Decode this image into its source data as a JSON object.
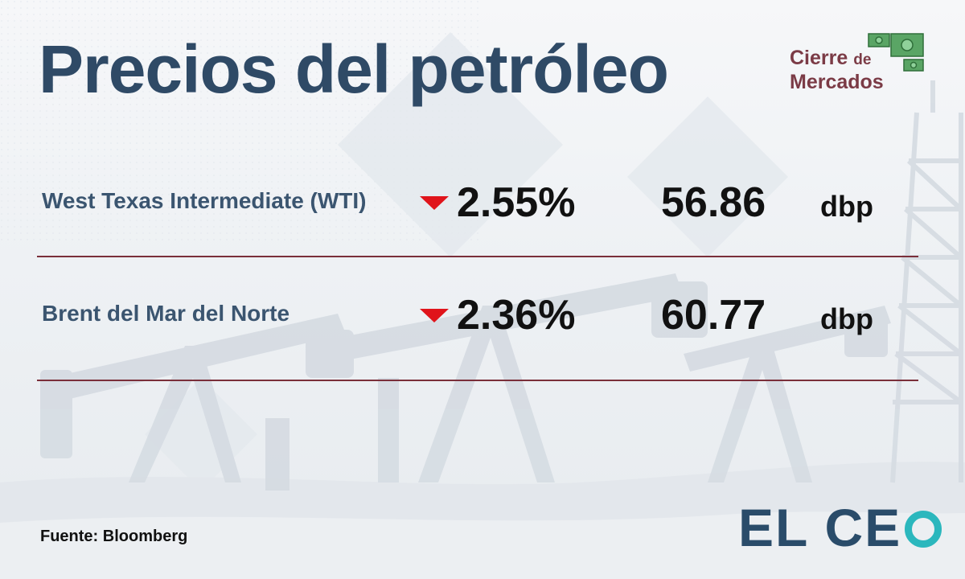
{
  "title": "Precios del petróleo",
  "badge": {
    "line1": "Cierre",
    "line1_small": "de",
    "line2": "Mercados",
    "icon": "money-bills-icon"
  },
  "rows": [
    {
      "name": "West Texas Intermediate (WTI)",
      "direction": "down",
      "change": "2.55%",
      "price": "56.86",
      "unit": "dbp"
    },
    {
      "name": "Brent del Mar del Norte",
      "direction": "down",
      "change": "2.36%",
      "price": "60.77",
      "unit": "dbp"
    }
  ],
  "source": "Fuente: Bloomberg",
  "brand": {
    "text": "EL CE"
  },
  "colors": {
    "title": "#2f4a66",
    "badge_text": "#7b3b46",
    "down_arrow": "#e0141b",
    "divider": "#7a2f3a",
    "brand_dark": "#2a4c6a",
    "brand_accent": "#2bb7bd",
    "money_green": "#3f8f4a"
  }
}
